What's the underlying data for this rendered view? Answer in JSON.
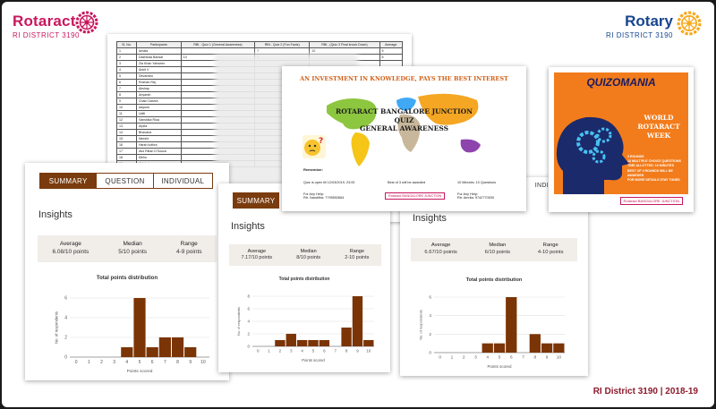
{
  "slide": {
    "left_logo": {
      "brand": "Rotaract",
      "sub": "RI DISTRICT 3190"
    },
    "right_logo": {
      "brand": "Rotary",
      "sub": "RI DISTRICT 3190"
    },
    "footer": "RI District 3190 | 2018-19"
  },
  "spreadsheet": {
    "headers": [
      "Sl. No.",
      "Participants",
      "RBt - Quiz 1 (General Awareness)",
      "RBt - Quiz 2 (Fun Facts)",
      "RBt - (Quiz 3 Final knock Down)",
      "Average"
    ],
    "rows": [
      [
        "1",
        "Amala",
        "",
        "7",
        "10",
        "9"
      ],
      [
        "2",
        "Dashikaa Bansal",
        "10",
        "7",
        "",
        "8"
      ],
      [
        "3",
        "Zia Khan Yahseen",
        "",
        "",
        "",
        ""
      ],
      [
        "4",
        "Ankit V",
        "",
        "",
        "",
        ""
      ],
      [
        "5",
        "Devanshu",
        "",
        "",
        "",
        ""
      ],
      [
        "6",
        "Roshan Raj",
        "",
        "",
        "",
        ""
      ],
      [
        "7",
        "Akshay",
        "",
        "",
        "",
        ""
      ],
      [
        "8",
        "Anyarah",
        "",
        "",
        "",
        ""
      ],
      [
        "9",
        "Chain Dalvea",
        "",
        "",
        "",
        ""
      ],
      [
        "10",
        "Aayush",
        "",
        "",
        "",
        ""
      ],
      [
        "11",
        "Uditi",
        "",
        "",
        "",
        ""
      ],
      [
        "12",
        "Vanshika Riua",
        "",
        "",
        "",
        ""
      ],
      [
        "13",
        "Arpita",
        "",
        "",
        "",
        ""
      ],
      [
        "14",
        "Bhavana",
        "",
        "",
        "",
        ""
      ],
      [
        "15",
        "Neeshi",
        "",
        "",
        "",
        ""
      ],
      [
        "16",
        "Harsh kothra",
        "",
        "",
        "",
        ""
      ],
      [
        "17",
        "Atul Rikan D'Souza",
        "",
        "",
        "",
        ""
      ],
      [
        "18",
        "Mehu",
        "",
        "",
        "",
        ""
      ],
      [
        "19",
        "Abishek",
        "",
        "",
        "",
        ""
      ]
    ]
  },
  "cards": [
    {
      "tabs": [
        "SUMMARY",
        "QUESTION",
        "INDIVIDUAL"
      ],
      "insights_label": "Insights",
      "stats": [
        {
          "label": "Average",
          "value": "6.08/10 points"
        },
        {
          "label": "Median",
          "value": "5/10 points"
        },
        {
          "label": "Range",
          "value": "4-9 points"
        }
      ],
      "dist_title": "Total points distribution"
    },
    {
      "tabs": [
        "SUMMARY"
      ],
      "insights_label": "Insights",
      "stats": [
        {
          "label": "Average",
          "value": "7.17/10 points"
        },
        {
          "label": "Median",
          "value": "8/10 points"
        },
        {
          "label": "Range",
          "value": "2-10 points"
        }
      ],
      "dist_title": "Total points distribution"
    },
    {
      "tabs": [
        "INDIVI"
      ],
      "insights_label": "Insights",
      "stats": [
        {
          "label": "Average",
          "value": "6.67/10 points"
        },
        {
          "label": "Median",
          "value": "6/10 points"
        },
        {
          "label": "Range",
          "value": "4-10 points"
        }
      ],
      "dist_title": "Total points distribution"
    }
  ],
  "chart_data": [
    {
      "type": "bar",
      "title": "Total points distribution",
      "xlabel": "Points scored",
      "ylabel": "No. of respondents",
      "categories": [
        0,
        1,
        2,
        3,
        4,
        5,
        6,
        7,
        8,
        9,
        10
      ],
      "values": [
        0,
        0,
        0,
        0,
        1,
        6,
        1,
        2,
        2,
        1,
        0
      ],
      "ylim": [
        0,
        6
      ],
      "yticks": [
        0,
        2,
        4,
        6
      ]
    },
    {
      "type": "bar",
      "title": "Total points distribution",
      "xlabel": "Points scored",
      "ylabel": "No. of respondents",
      "categories": [
        0,
        1,
        2,
        3,
        4,
        5,
        6,
        7,
        8,
        9,
        10
      ],
      "values": [
        0,
        0,
        1,
        2,
        1,
        1,
        1,
        0,
        3,
        8,
        1
      ],
      "ylim": [
        0,
        8
      ],
      "yticks": [
        0,
        2,
        4,
        6,
        8
      ]
    },
    {
      "type": "bar",
      "title": "Total points distribution",
      "xlabel": "Points scored",
      "ylabel": "No. of respondents",
      "categories": [
        0,
        1,
        2,
        3,
        4,
        5,
        6,
        7,
        8,
        9,
        10
      ],
      "values": [
        0,
        0,
        0,
        0,
        1,
        1,
        6,
        0,
        2,
        1,
        1
      ],
      "ylim": [
        0,
        6
      ],
      "yticks": [
        0,
        2,
        4,
        6
      ]
    }
  ],
  "poster": {
    "headline": "AN INVESTMENT IN KNOWLEDGE, PAYS THE BEST INTEREST",
    "line1": "ROTARACT BANGALORE JUNCTION",
    "line2": "QUIZ",
    "line3": "GENERAL AWARENESS",
    "remember_label": "Remember:",
    "rules": [
      "Quiz is open till 12/03/2019, 23:00",
      "Best of 3 will be awarded",
      "10 Minutes: 10 Questions"
    ],
    "help1": "For Any Help:\nRtr. Nanditha: 7795592664",
    "help2": "For Any Help:\nRtr. Amrita: 9742770530",
    "badge": "Rotaract BANGALORE JUNCTION"
  },
  "quizomania": {
    "title": "QUIZOMANIA",
    "event": "WORLD ROTARACT WEEK",
    "rules": [
      "3 ROUNDS",
      "10 MULTIPLE CHOICE QUESTIONS",
      "TIME ALLOTTED: 10 MINUTES",
      "BEST OF 3 ROUNDS WILL BE AWARDED",
      "FOR MORE DETAILS STAY TUNED"
    ],
    "badge": "Rotaract BANGALORE JUNCTION"
  },
  "colors": {
    "rotaract": "#c8175d",
    "rotary": "#17458f",
    "rotary_gold": "#f7a81b",
    "tab_brown": "#7a3b0e",
    "bar_brown": "#7b3405",
    "footer": "#8b1a2b"
  }
}
